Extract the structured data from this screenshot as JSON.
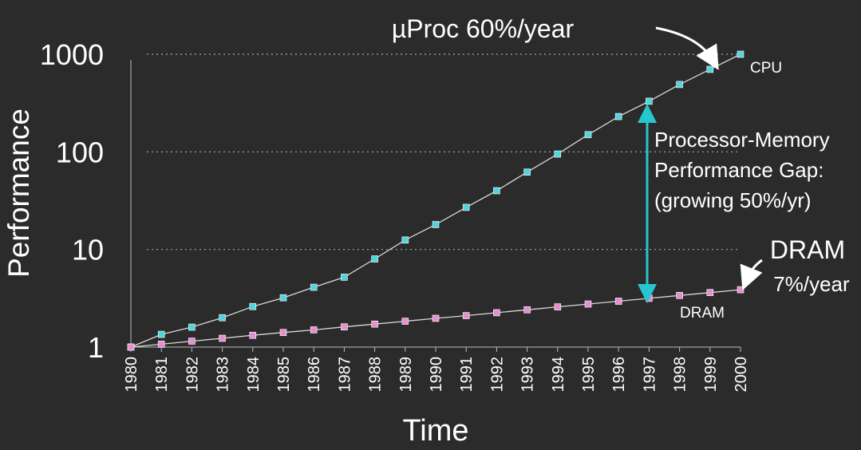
{
  "chart_data": {
    "type": "line",
    "ylabel": "Performance",
    "xlabel": "Time",
    "yscale": "log",
    "ylim": [
      1,
      1000
    ],
    "xlim": [
      1980,
      2000
    ],
    "y_ticks": [
      "1",
      "10",
      "100",
      "1000"
    ],
    "x_ticks": [
      "1980",
      "1981",
      "1982",
      "1983",
      "1984",
      "1985",
      "1986",
      "1987",
      "1988",
      "1989",
      "1990",
      "1991",
      "1992",
      "1993",
      "1994",
      "1995",
      "1996",
      "1997",
      "1998",
      "1999",
      "2000"
    ],
    "grid": "dashed horizontal at 10, 100, 1000",
    "series": [
      {
        "name": "CPU",
        "color": "#4fd6dc",
        "x": [
          1980,
          1981,
          1982,
          1983,
          1984,
          1985,
          1986,
          1987,
          1988,
          1989,
          1990,
          1991,
          1992,
          1993,
          1994,
          1995,
          1996,
          1997,
          1998,
          1999,
          2000
        ],
        "values": [
          1,
          1.35,
          1.6,
          2,
          2.6,
          3.2,
          4.1,
          5.2,
          8,
          12.5,
          18,
          27,
          40,
          62,
          95,
          150,
          230,
          330,
          490,
          700,
          1000
        ]
      },
      {
        "name": "DRAM",
        "color": "#e58fd0",
        "x": [
          1980,
          1981,
          1982,
          1983,
          1984,
          1985,
          1986,
          1987,
          1988,
          1989,
          1990,
          1991,
          1992,
          1993,
          1994,
          1995,
          1996,
          1997,
          1998,
          1999,
          2000
        ],
        "values": [
          1,
          1.07,
          1.15,
          1.23,
          1.32,
          1.41,
          1.5,
          1.61,
          1.72,
          1.84,
          1.97,
          2.1,
          2.25,
          2.41,
          2.58,
          2.76,
          2.95,
          3.16,
          3.38,
          3.62,
          3.87
        ]
      }
    ],
    "annotations": {
      "uproc": "µProc 60%/year",
      "cpu_label": "CPU",
      "gap_line1": "Processor-Memory",
      "gap_line2": "Performance Gap:",
      "gap_line3": "(growing 50%/yr)",
      "dram_big": "DRAM",
      "dram_rate": "7%/year",
      "dram_label": "DRAM"
    }
  }
}
